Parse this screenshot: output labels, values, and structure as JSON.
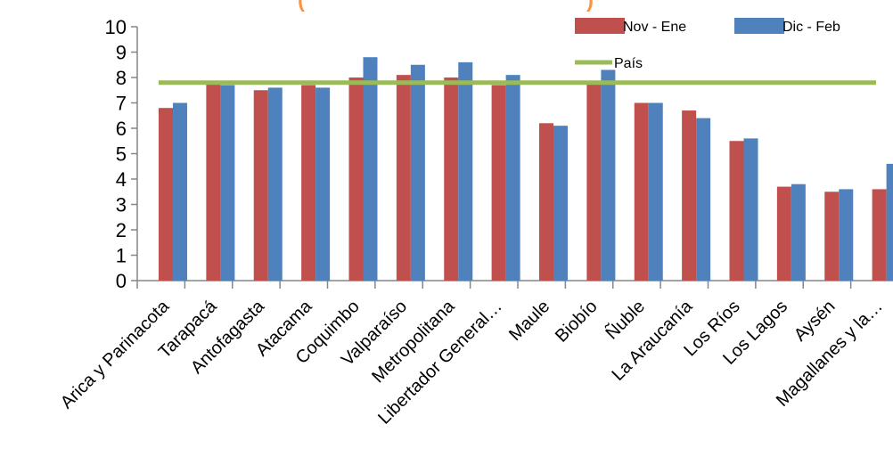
{
  "chart_data": {
    "type": "bar",
    "title_fragment_left": "(",
    "title_fragment_right": ")",
    "title_color": "#f79646",
    "categories": [
      "Arica y Parinacota",
      "Tarapacá",
      "Antofagasta",
      "Atacama",
      "Coquimbo",
      "Valparaíso",
      "Metropolitana",
      "Libertador General…",
      "Maule",
      "Biobío",
      "Ñuble",
      "La Araucanía",
      "Los Ríos",
      "Los Lagos",
      "Aysén",
      "Magallanes y la…"
    ],
    "series": [
      {
        "name": "Nov - Ene",
        "color": "#c0504d",
        "values": [
          6.8,
          7.8,
          7.5,
          7.7,
          8.0,
          8.1,
          8.0,
          7.7,
          6.2,
          7.8,
          7.0,
          6.7,
          5.5,
          3.7,
          3.5,
          3.6
        ]
      },
      {
        "name": "Dic - Feb",
        "color": "#4f81bd",
        "values": [
          7.0,
          7.7,
          7.6,
          7.6,
          8.8,
          8.5,
          8.6,
          8.1,
          6.1,
          8.3,
          7.0,
          6.4,
          5.6,
          3.8,
          3.6,
          4.6
        ]
      }
    ],
    "reference_line": {
      "name": "País",
      "value": 7.8,
      "color": "#9bbb59"
    },
    "ylim": [
      0,
      10
    ],
    "yticks": [
      "0",
      "1",
      "2",
      "3",
      "4",
      "5",
      "6",
      "7",
      "8",
      "9",
      "10"
    ],
    "grid": false,
    "legend_position": "top-right"
  }
}
